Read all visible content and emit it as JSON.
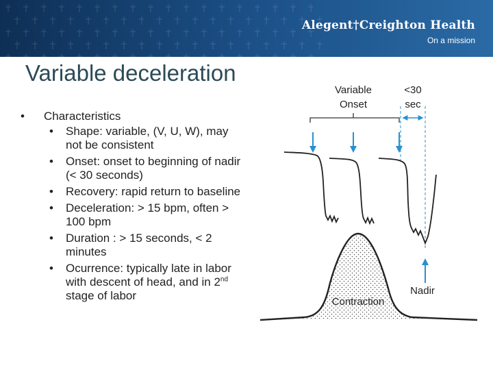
{
  "header": {
    "brand_name": "Alegent†Creighton Health",
    "tagline": "On a mission",
    "colors": {
      "banner_dark": "#0e2f55",
      "banner_light": "#2a6aa5"
    }
  },
  "title": "Variable deceleration",
  "bullets": {
    "heading": "Characteristics",
    "items": [
      "Shape: variable, (V, U, W), may not be consistent",
      "Onset: onset to beginning of nadir (< 30 seconds)",
      "Recovery: rapid return to baseline",
      "Deceleration: > 15 bpm, often > 100 bpm",
      "Duration : > 15 seconds, < 2 minutes",
      "Ocurrence: typically late in labor with descent of head,"
    ],
    "last_line_prefix": "and in 2",
    "last_line_sup": "nd",
    "last_line_suffix": " stage of labor"
  },
  "diagram": {
    "onset_label_line1": "Variable",
    "onset_label_line2": "Onset",
    "duration_label_line1": "<30",
    "duration_label_line2": "sec",
    "nadir_label": "Nadir",
    "contraction_label": "Contraction",
    "arrow_color": "#2a8fd0"
  }
}
